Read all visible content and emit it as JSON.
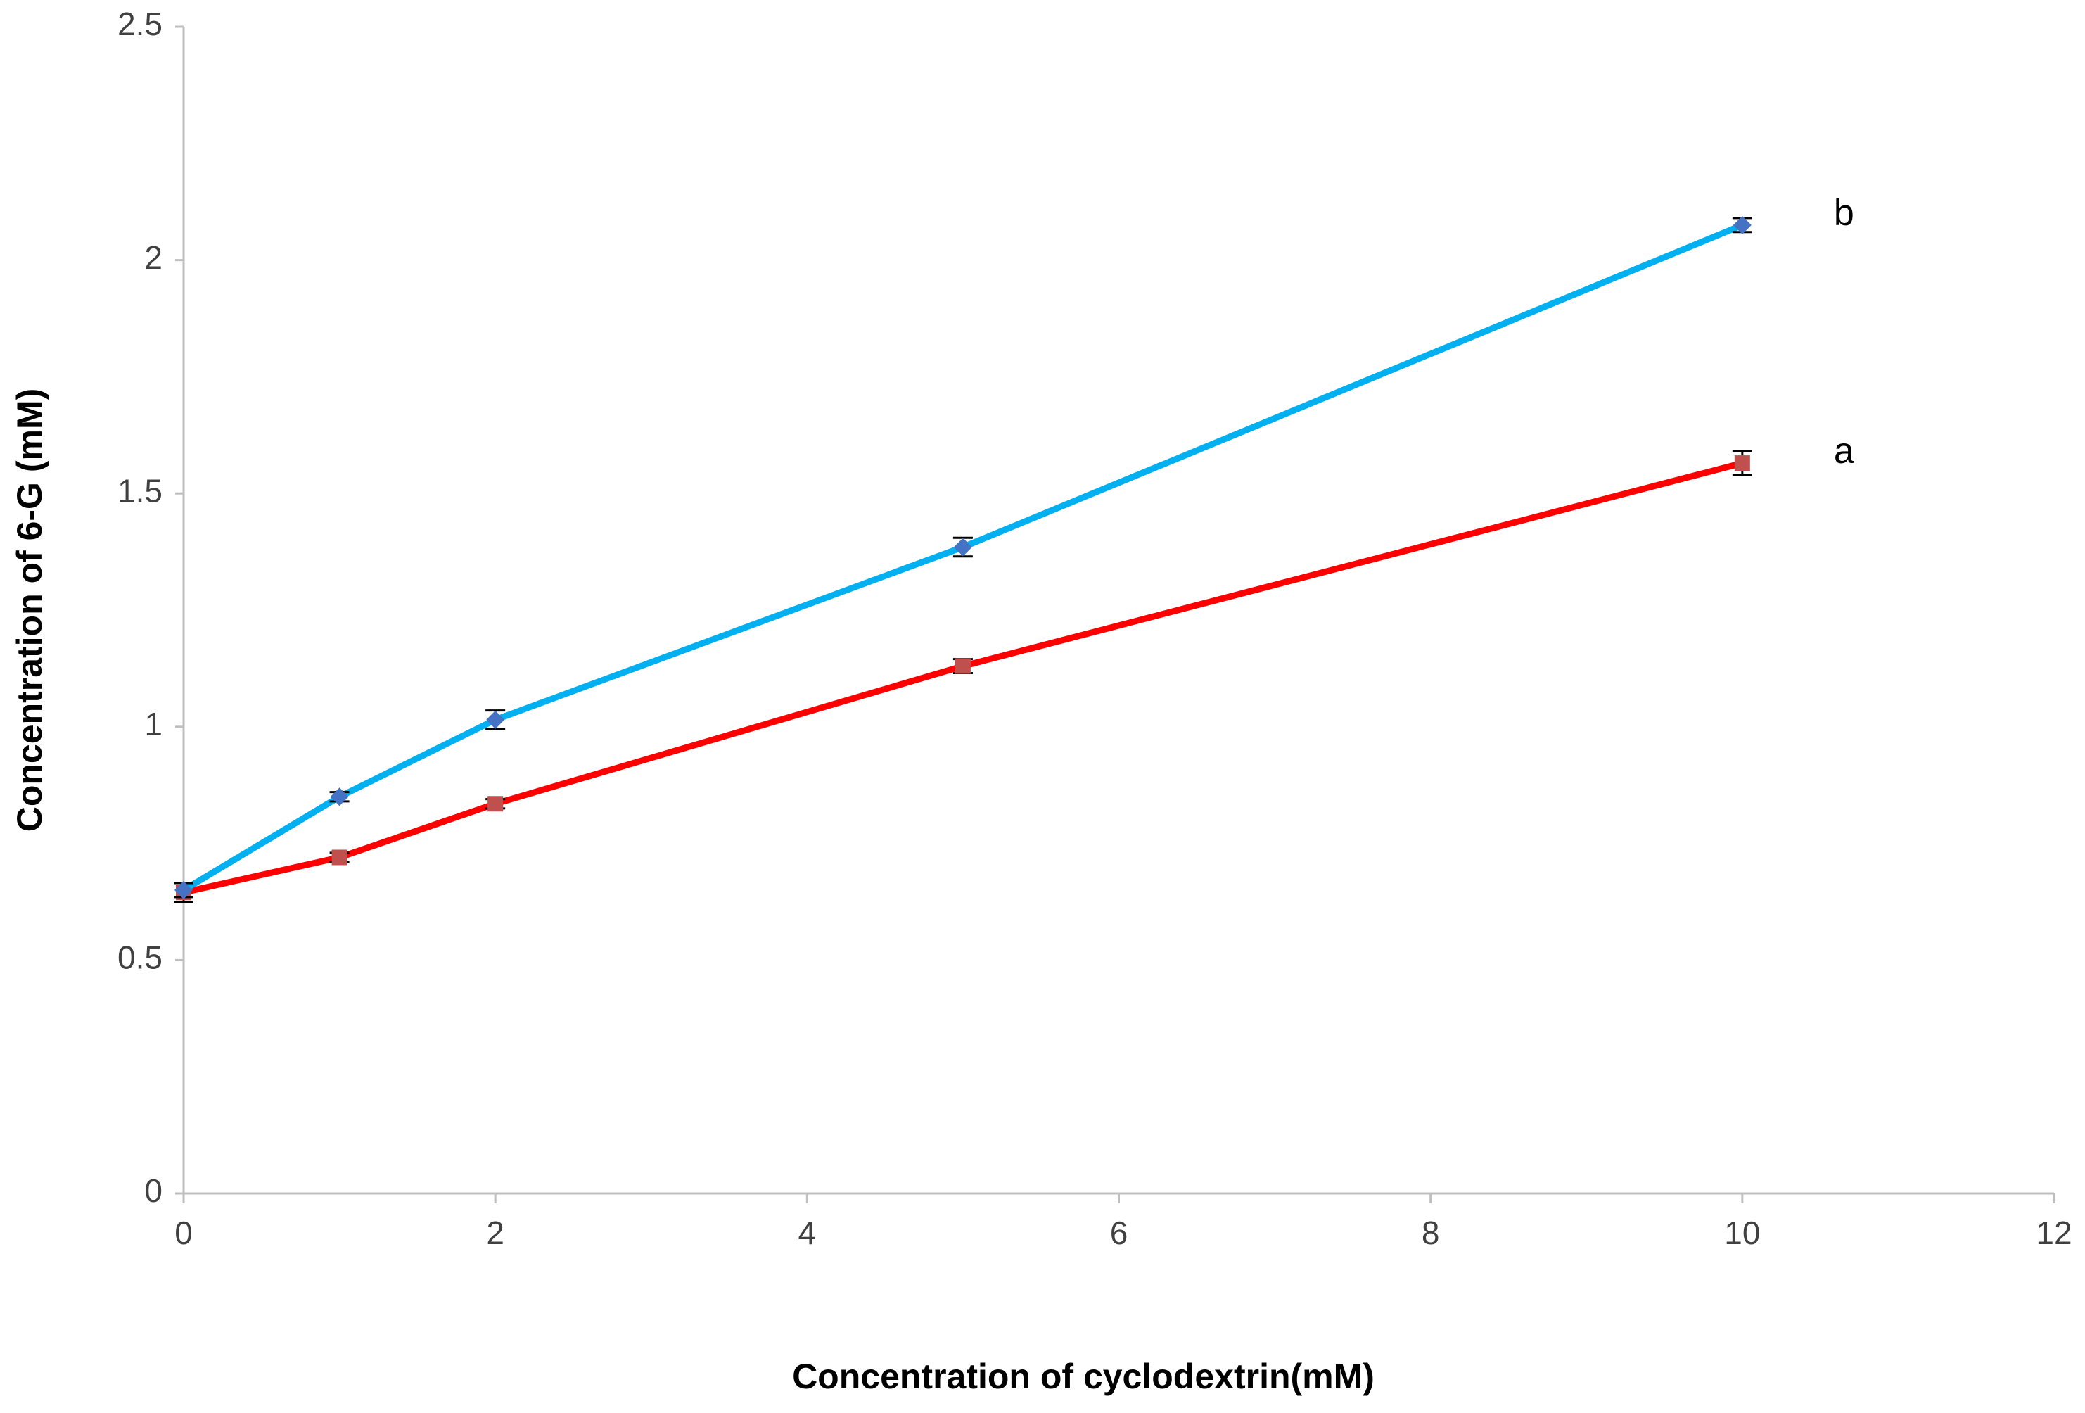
{
  "chart_data": {
    "type": "line",
    "x_label": "Concentration of cyclodextrin(mM)",
    "y_label": "Concentration of 6-G (mM)",
    "x": [
      0,
      1,
      2,
      5,
      10
    ],
    "series": [
      {
        "name": "a",
        "color": "#ff0000",
        "marker_color": "#c0504d",
        "values": [
          0.645,
          0.72,
          0.835,
          1.13,
          1.565
        ],
        "errors": [
          0.02,
          0.01,
          0.01,
          0.015,
          0.025
        ]
      },
      {
        "name": "b",
        "color": "#00b0f0",
        "marker_color": "#4472c4",
        "values": [
          0.65,
          0.85,
          1.015,
          1.385,
          2.075
        ],
        "errors": [
          0.015,
          0.01,
          0.02,
          0.02,
          0.015
        ]
      }
    ],
    "xlim": [
      0,
      12
    ],
    "xticks": [
      0,
      2,
      4,
      6,
      8,
      10,
      12
    ],
    "ylim": [
      0,
      2.5
    ],
    "yticks": [
      0,
      0.5,
      1,
      1.5,
      2,
      2.5
    ],
    "grid": false
  }
}
